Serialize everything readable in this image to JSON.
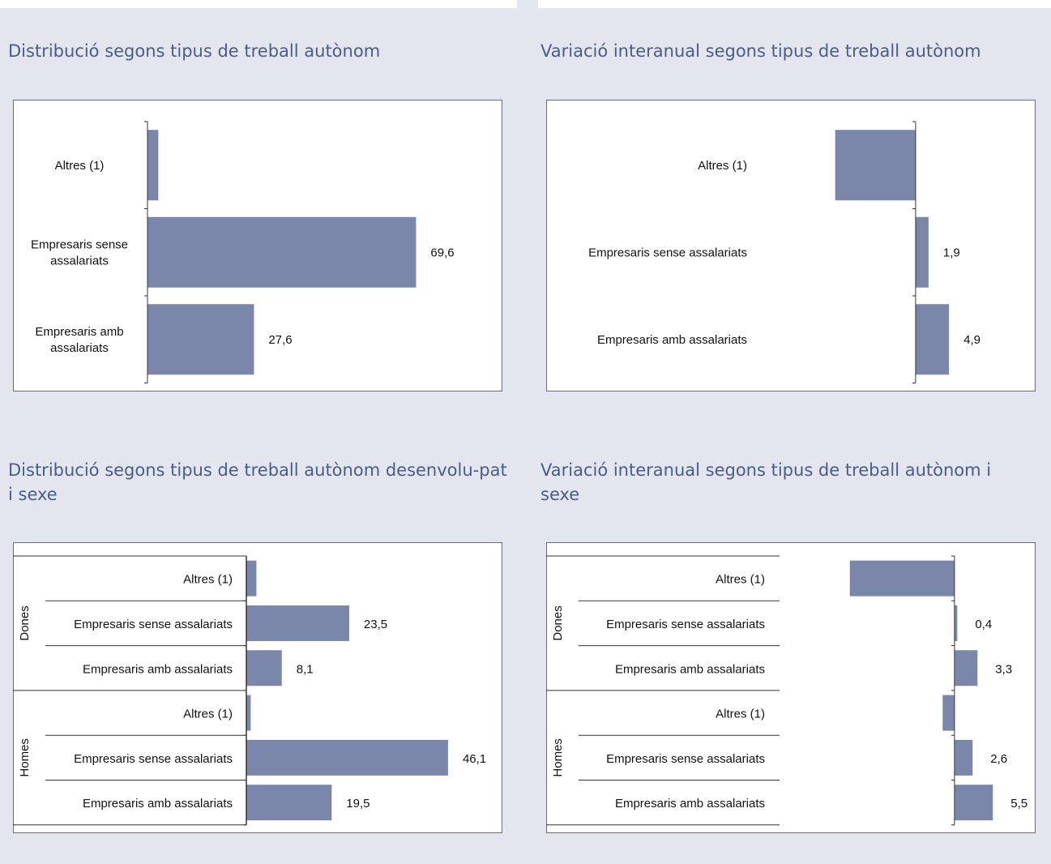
{
  "colors": {
    "bar": "#7b87aa",
    "title": "#4a5d86",
    "background": "#e3e6ee"
  },
  "charts": [
    {
      "title": "Distribució segons tipus de treball autònom",
      "chart_data": {
        "type": "bar",
        "orientation": "horizontal",
        "categories": [
          "Altres (1)",
          "Empresaris sense assalariats",
          "Empresaris amb assalariats"
        ],
        "values": [
          2.8,
          69.6,
          27.6
        ],
        "data_labels": [
          "",
          "69,6",
          "27,6"
        ],
        "xlim": [
          0,
          84
        ],
        "grid": false
      }
    },
    {
      "title": "Variació interanual segons tipus de treball autònom",
      "chart_data": {
        "type": "bar",
        "orientation": "horizontal",
        "categories": [
          "Altres (1)",
          "Empresaris sense assalariats",
          "Empresaris amb assalariats"
        ],
        "values": [
          -11.8,
          1.9,
          4.9
        ],
        "data_labels": [
          "",
          "1,9",
          "4,9"
        ],
        "xlim": [
          -34,
          10
        ],
        "grid": false
      }
    },
    {
      "title": "Distribució segons tipus de treball autònom desenvolupat i sexe",
      "title_display": "Distribució segons tipus de treball autònom desenvolu-pat i sexe",
      "chart_data": {
        "type": "bar",
        "orientation": "horizontal",
        "groups": [
          {
            "name": "Dones",
            "categories": [
              "Altres (1)",
              "Empresaris sense assalariats",
              "Empresaris amb assalariats"
            ],
            "values": [
              2.3,
              23.5,
              8.1
            ],
            "data_labels": [
              "",
              "23,5",
              "8,1"
            ]
          },
          {
            "name": "Homes",
            "categories": [
              "Altres (1)",
              "Empresaris sense assalariats",
              "Empresaris amb assalariats"
            ],
            "values": [
              1.0,
              46.1,
              19.5
            ],
            "data_labels": [
              "",
              "46,1",
              "19,5"
            ]
          }
        ],
        "xlim": [
          0,
          55
        ],
        "grid": false
      }
    },
    {
      "title": "Variació interanual segons tipus de treball autònom i sexe",
      "chart_data": {
        "type": "bar",
        "orientation": "horizontal",
        "groups": [
          {
            "name": "Dones",
            "categories": [
              "Altres (1)",
              "Empresaris sense assalariats",
              "Empresaris amb assalariats"
            ],
            "values": [
              -15.0,
              0.4,
              3.3
            ],
            "data_labels": [
              "",
              "0,4",
              "3,3"
            ]
          },
          {
            "name": "Homes",
            "categories": [
              "Altres (1)",
              "Empresaris sense assalariats",
              "Empresaris amb assalariats"
            ],
            "values": [
              -1.7,
              2.6,
              5.5
            ],
            "data_labels": [
              "",
              "2,6",
              "5,5"
            ]
          }
        ],
        "xlim": [
          -26,
          10
        ],
        "grid": false
      }
    }
  ]
}
